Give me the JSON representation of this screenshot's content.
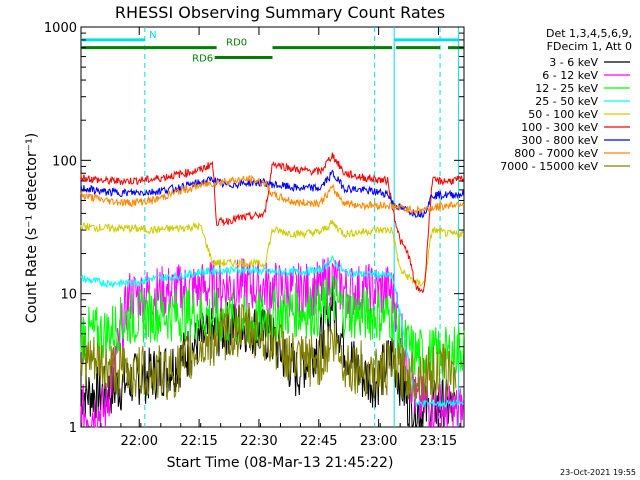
{
  "chart_data": {
    "type": "line",
    "title": "RHESSI Observing Summary Count Rates",
    "xlabel": "Start Time (08-Mar-13 21:45:22)",
    "ylabel": "Count Rate (s⁻¹ detector⁻¹)",
    "yscale": "log",
    "ylim": [
      1,
      1000
    ],
    "xlim_minutes": [
      0,
      96
    ],
    "x_ticks": [
      {
        "min": 14.6,
        "label": "22:00"
      },
      {
        "min": 29.6,
        "label": "22:15"
      },
      {
        "min": 44.6,
        "label": "22:30"
      },
      {
        "min": 59.6,
        "label": "22:45"
      },
      {
        "min": 74.6,
        "label": "23:00"
      },
      {
        "min": 89.6,
        "label": "23:15"
      }
    ],
    "y_ticks": [
      {
        "value": 1,
        "label": "1"
      },
      {
        "value": 10,
        "label": "10"
      },
      {
        "value": 100,
        "label": "100"
      },
      {
        "value": 1000,
        "label": "1000"
      }
    ],
    "legend_header": [
      "Det 1,3,4,5,6,9,",
      "FDecim 1, Att 0"
    ],
    "legend_position": "right",
    "footer": "23-Oct-2021 19:55",
    "night_lines_min": [
      16.0,
      73.6
    ],
    "saa_lines_min": [
      90.0
    ],
    "day_boundary_min": [
      78.5,
      94.6
    ],
    "flags": [
      {
        "label": "N",
        "color": "#00e0e0",
        "segments": [
          [
            0,
            16
          ],
          [
            78.5,
            94.6
          ]
        ],
        "level": 800
      },
      {
        "label": "RD0",
        "color": "#008000",
        "segments": [
          [
            0,
            34
          ],
          [
            48,
            78
          ],
          [
            79,
            90
          ],
          [
            92,
            96
          ]
        ],
        "level": 700
      },
      {
        "label": "RD6",
        "color": "#008000",
        "segments": [
          [
            33.5,
            48
          ]
        ],
        "level": 590
      }
    ],
    "series": [
      {
        "name": "3 - 6 keV",
        "color": "#000000",
        "points": [
          [
            0,
            1.8
          ],
          [
            6,
            1.8
          ],
          [
            12,
            2.2
          ],
          [
            18,
            2.5
          ],
          [
            24,
            3.0
          ],
          [
            30,
            4.5
          ],
          [
            36,
            5.5
          ],
          [
            42,
            5.8
          ],
          [
            48,
            4.5
          ],
          [
            54,
            2.5
          ],
          [
            60,
            4.5
          ],
          [
            63,
            9.0
          ],
          [
            66,
            4.0
          ],
          [
            70,
            2.5
          ],
          [
            74,
            2.2
          ],
          [
            78,
            3.5
          ],
          [
            82,
            1.5
          ],
          [
            86,
            1.3
          ],
          [
            90,
            1.5
          ],
          [
            94,
            1.3
          ]
        ]
      },
      {
        "name": "6 - 12 keV",
        "color": "#ff00ff",
        "points": [
          [
            0,
            1.3
          ],
          [
            6,
            1.3
          ],
          [
            12,
            9.5
          ],
          [
            18,
            10.0
          ],
          [
            24,
            10.5
          ],
          [
            30,
            11.0
          ],
          [
            36,
            11.5
          ],
          [
            42,
            11.5
          ],
          [
            48,
            11.0
          ],
          [
            54,
            10.5
          ],
          [
            60,
            11.0
          ],
          [
            63,
            13.0
          ],
          [
            66,
            10.5
          ],
          [
            70,
            10.5
          ],
          [
            74,
            10.5
          ],
          [
            78,
            10.5
          ],
          [
            80,
            6.0
          ],
          [
            84,
            1.5
          ],
          [
            88,
            1.5
          ],
          [
            92,
            1.3
          ],
          [
            96,
            1.3
          ]
        ]
      },
      {
        "name": "12 - 25 keV",
        "color": "#00ff00",
        "points": [
          [
            0,
            5.0
          ],
          [
            6,
            5.0
          ],
          [
            12,
            6.5
          ],
          [
            18,
            7.0
          ],
          [
            24,
            7.0
          ],
          [
            30,
            7.0
          ],
          [
            36,
            6.5
          ],
          [
            42,
            6.0
          ],
          [
            48,
            7.0
          ],
          [
            54,
            7.5
          ],
          [
            60,
            7.5
          ],
          [
            63,
            9.5
          ],
          [
            66,
            7.5
          ],
          [
            70,
            7.0
          ],
          [
            74,
            7.0
          ],
          [
            78,
            7.0
          ],
          [
            80,
            4.5
          ],
          [
            84,
            3.5
          ],
          [
            88,
            3.5
          ],
          [
            92,
            3.5
          ],
          [
            96,
            4.0
          ]
        ]
      },
      {
        "name": "25 - 50 keV",
        "color": "#00ffff",
        "points": [
          [
            0,
            13.0
          ],
          [
            6,
            12.0
          ],
          [
            12,
            12.0
          ],
          [
            18,
            13.0
          ],
          [
            24,
            13.5
          ],
          [
            30,
            14.5
          ],
          [
            36,
            15.0
          ],
          [
            42,
            15.0
          ],
          [
            48,
            14.5
          ],
          [
            54,
            14.5
          ],
          [
            60,
            15.0
          ],
          [
            63,
            18.0
          ],
          [
            66,
            14.5
          ],
          [
            70,
            14.0
          ],
          [
            74,
            14.0
          ],
          [
            78,
            13.5
          ],
          [
            80,
            7.0
          ],
          [
            84,
            1.5
          ],
          [
            88,
            1.5
          ],
          [
            92,
            1.5
          ],
          [
            96,
            1.5
          ]
        ]
      },
      {
        "name": "50 - 100 keV",
        "color": "#cccc00",
        "points": [
          [
            0,
            32.0
          ],
          [
            6,
            31.0
          ],
          [
            12,
            31.0
          ],
          [
            18,
            30.0
          ],
          [
            24,
            31.0
          ],
          [
            30,
            32.0
          ],
          [
            33,
            17.0
          ],
          [
            36,
            17.0
          ],
          [
            42,
            17.0
          ],
          [
            46,
            16.5
          ],
          [
            48,
            30.0
          ],
          [
            54,
            28.0
          ],
          [
            60,
            29.0
          ],
          [
            63,
            34.0
          ],
          [
            66,
            28.0
          ],
          [
            70,
            29.0
          ],
          [
            74,
            30.0
          ],
          [
            78,
            30.0
          ],
          [
            80,
            15.0
          ],
          [
            84,
            12.0
          ],
          [
            86,
            12.0
          ],
          [
            88,
            30.0
          ],
          [
            92,
            28.0
          ],
          [
            96,
            28.0
          ]
        ]
      },
      {
        "name": "100 - 300 keV",
        "color": "#ff0000",
        "points": [
          [
            0,
            75.0
          ],
          [
            6,
            70.0
          ],
          [
            12,
            70.0
          ],
          [
            18,
            72.0
          ],
          [
            24,
            78.0
          ],
          [
            30,
            85.0
          ],
          [
            33,
            95.0
          ],
          [
            34,
            34.0
          ],
          [
            40,
            37.0
          ],
          [
            46,
            39.0
          ],
          [
            48,
            95.0
          ],
          [
            54,
            85.0
          ],
          [
            60,
            82.0
          ],
          [
            63,
            110.0
          ],
          [
            66,
            80.0
          ],
          [
            70,
            75.0
          ],
          [
            74,
            72.0
          ],
          [
            77,
            70.0
          ],
          [
            78,
            45.0
          ],
          [
            80,
            25.0
          ],
          [
            82,
            20.0
          ],
          [
            84,
            11.0
          ],
          [
            86,
            10.5
          ],
          [
            88,
            70.0
          ],
          [
            92,
            70.0
          ],
          [
            96,
            72.0
          ]
        ]
      },
      {
        "name": "300 - 800 keV",
        "color": "#0000ff",
        "points": [
          [
            0,
            62.0
          ],
          [
            6,
            58.0
          ],
          [
            12,
            57.0
          ],
          [
            18,
            58.0
          ],
          [
            24,
            62.0
          ],
          [
            30,
            68.0
          ],
          [
            33,
            72.0
          ],
          [
            36,
            65.0
          ],
          [
            42,
            68.0
          ],
          [
            46,
            68.0
          ],
          [
            48,
            66.0
          ],
          [
            54,
            62.0
          ],
          [
            60,
            62.0
          ],
          [
            63,
            80.0
          ],
          [
            66,
            62.0
          ],
          [
            70,
            60.0
          ],
          [
            74,
            58.0
          ],
          [
            77,
            56.0
          ],
          [
            78,
            48.0
          ],
          [
            80,
            44.0
          ],
          [
            84,
            40.0
          ],
          [
            86,
            40.0
          ],
          [
            88,
            55.0
          ],
          [
            92,
            55.0
          ],
          [
            96,
            56.0
          ]
        ]
      },
      {
        "name": "800 - 7000 keV",
        "color": "#ff8800",
        "points": [
          [
            0,
            55.0
          ],
          [
            6,
            50.0
          ],
          [
            12,
            48.0
          ],
          [
            18,
            50.0
          ],
          [
            24,
            58.0
          ],
          [
            30,
            65.0
          ],
          [
            36,
            70.0
          ],
          [
            42,
            72.0
          ],
          [
            46,
            68.0
          ],
          [
            48,
            55.0
          ],
          [
            54,
            48.0
          ],
          [
            60,
            48.0
          ],
          [
            63,
            62.0
          ],
          [
            66,
            48.0
          ],
          [
            70,
            46.0
          ],
          [
            74,
            46.0
          ],
          [
            77,
            46.0
          ],
          [
            80,
            44.0
          ],
          [
            84,
            42.0
          ],
          [
            88,
            44.0
          ],
          [
            92,
            46.0
          ],
          [
            96,
            48.0
          ]
        ]
      },
      {
        "name": "7000 - 15000 keV",
        "color": "#808000",
        "points": [
          [
            0,
            3.2
          ],
          [
            6,
            2.8
          ],
          [
            12,
            2.6
          ],
          [
            18,
            2.5
          ],
          [
            24,
            2.6
          ],
          [
            30,
            4.0
          ],
          [
            36,
            5.0
          ],
          [
            42,
            5.5
          ],
          [
            48,
            4.5
          ],
          [
            54,
            3.0
          ],
          [
            60,
            3.2
          ],
          [
            63,
            4.5
          ],
          [
            66,
            3.0
          ],
          [
            70,
            2.8
          ],
          [
            74,
            2.5
          ],
          [
            78,
            2.8
          ],
          [
            82,
            2.5
          ],
          [
            86,
            2.5
          ],
          [
            90,
            2.6
          ],
          [
            94,
            2.6
          ]
        ]
      }
    ]
  }
}
